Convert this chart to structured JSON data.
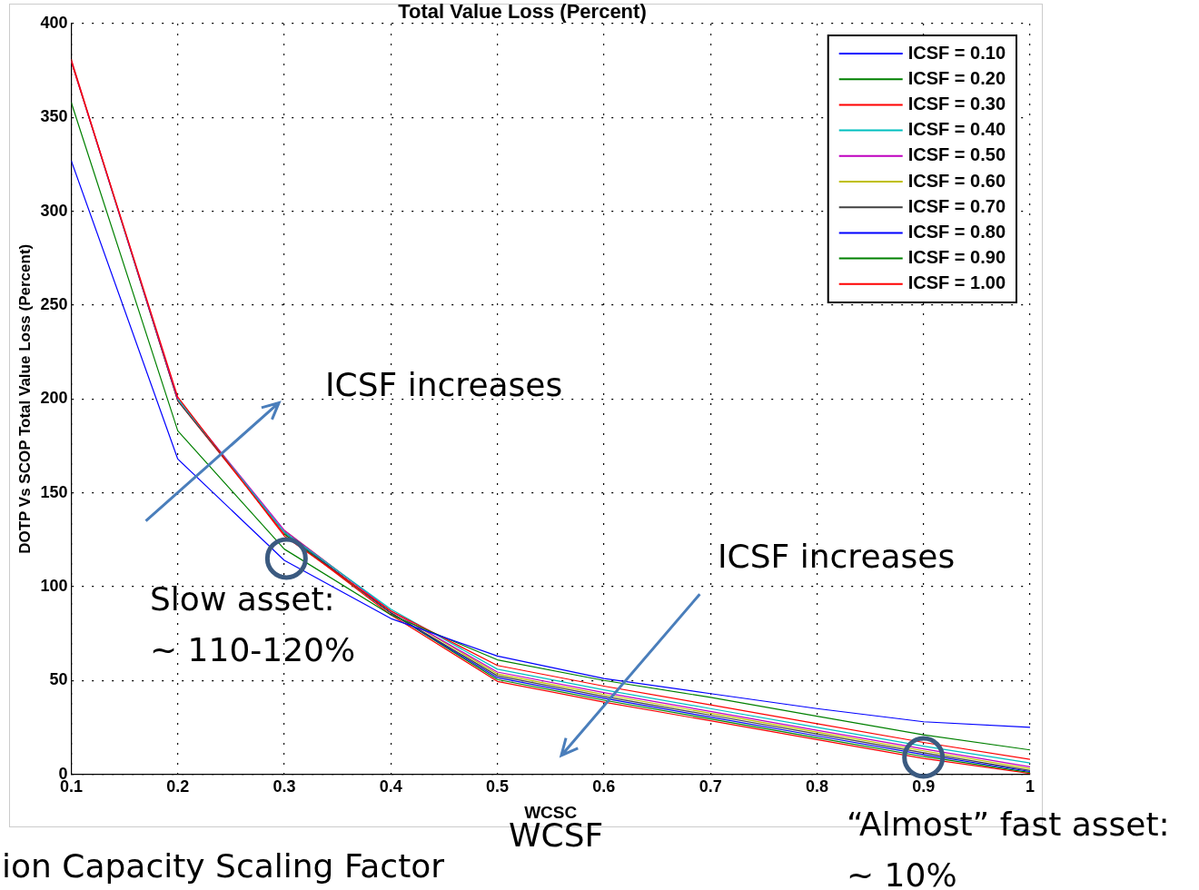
{
  "chart_data": {
    "type": "line",
    "title": "Total Value Loss (Percent)",
    "xlabel": "WCSC",
    "ylabel": "DOTP Vs SCOP Total Value Loss (Percent)",
    "x": [
      0.1,
      0.2,
      0.3,
      0.4,
      0.5,
      0.6,
      0.7,
      0.8,
      0.9,
      1.0
    ],
    "series": [
      {
        "name": "ICSF = 0.10",
        "color": "#0000ff",
        "values": [
          327,
          168,
          114,
          83,
          63,
          51,
          43,
          35,
          28,
          25
        ]
      },
      {
        "name": "ICSF = 0.20",
        "color": "#008000",
        "values": [
          358,
          183,
          120,
          85,
          61,
          50,
          41,
          31,
          21,
          13
        ]
      },
      {
        "name": "ICSF = 0.30",
        "color": "#ff0000",
        "values": [
          380,
          201,
          127,
          87,
          58,
          47,
          37,
          27,
          17,
          8
        ]
      },
      {
        "name": "ICSF = 0.40",
        "color": "#00bfbf",
        "values": [
          null,
          200,
          129,
          88,
          56,
          45,
          35,
          25,
          15,
          6
        ]
      },
      {
        "name": "ICSF = 0.50",
        "color": "#bf00bf",
        "values": [
          380,
          200,
          130,
          87,
          54.5,
          43.5,
          33.5,
          23.5,
          13.5,
          4
        ]
      },
      {
        "name": "ICSF = 0.60",
        "color": "#bfbf00",
        "values": [
          null,
          null,
          130,
          87,
          53.5,
          42.5,
          32.5,
          22.5,
          12.5,
          3
        ]
      },
      {
        "name": "ICSF = 0.70",
        "color": "#404040",
        "values": [
          380,
          199,
          129,
          86,
          52.5,
          41.5,
          31.5,
          21.5,
          11.5,
          2
        ]
      },
      {
        "name": "ICSF = 0.80",
        "color": "#0000ff",
        "values": [
          null,
          null,
          129,
          86,
          51.5,
          40.5,
          30.5,
          20.5,
          10.5,
          1.5
        ]
      },
      {
        "name": "ICSF = 0.90",
        "color": "#008000",
        "values": [
          null,
          null,
          128,
          86,
          50.5,
          39.5,
          29.5,
          19.5,
          9.5,
          1
        ]
      },
      {
        "name": "ICSF = 1.00",
        "color": "#ff0000",
        "values": [
          381,
          199,
          128,
          85,
          49.5,
          38.5,
          28.5,
          18.5,
          8.5,
          0.5
        ]
      }
    ],
    "xlim": [
      0.1,
      1
    ],
    "xticks": [
      0.1,
      0.2,
      0.3,
      0.4,
      0.5,
      0.6,
      0.7,
      0.8,
      0.9,
      {
        "value": 1,
        "label": "1"
      }
    ],
    "ylim": [
      0,
      400
    ],
    "yticks": [
      0,
      50,
      100,
      150,
      200,
      250,
      300,
      350,
      400
    ],
    "grid": true,
    "legend": "top right",
    "marker": "none",
    "line_style": "solid",
    "annotations": [
      "ICSF increases",
      "ICSF increases",
      "Slow asset:\n~ 110-120%",
      "“Almost” fast asset:\n~ 10%",
      "WCSF",
      "ion Capacity Scaling Factor"
    ]
  }
}
